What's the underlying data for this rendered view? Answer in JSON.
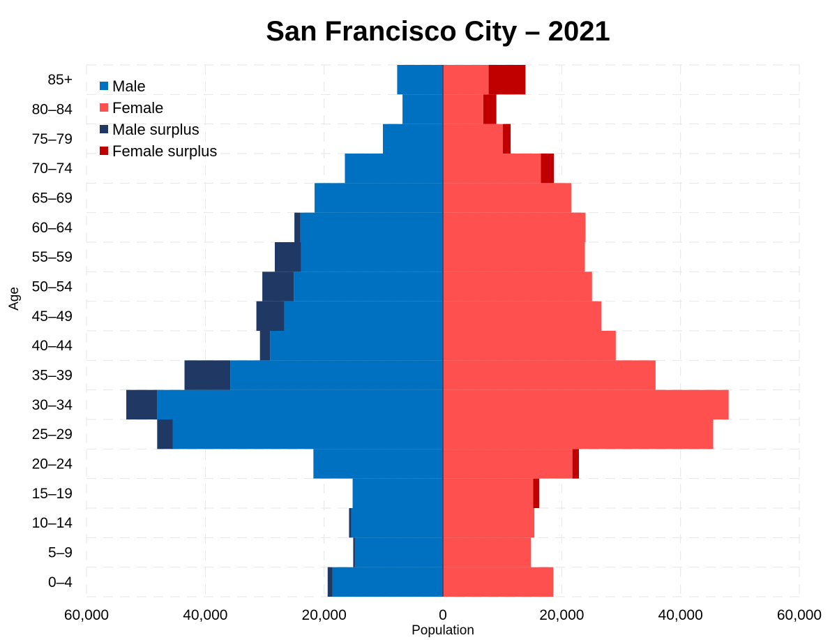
{
  "chart_data": {
    "type": "bar",
    "orientation": "horizontal",
    "layout": "population-pyramid",
    "title": "San Francisco City – 2021",
    "xlabel": "Population",
    "ylabel": "Age",
    "xlim": [
      -60000,
      60000
    ],
    "x_ticks": [
      {
        "value": -60000,
        "label": "60,000"
      },
      {
        "value": -40000,
        "label": "40,000"
      },
      {
        "value": -20000,
        "label": "20,000"
      },
      {
        "value": 0,
        "label": "0"
      },
      {
        "value": 20000,
        "label": "20,000"
      },
      {
        "value": 40000,
        "label": "40,000"
      },
      {
        "value": 60000,
        "label": "60,000"
      }
    ],
    "grid": true,
    "legend_position": "top-left",
    "categories": [
      "0–4",
      "5–9",
      "10–14",
      "15–19",
      "20–24",
      "25–29",
      "30–34",
      "35–39",
      "40–44",
      "45–49",
      "50–54",
      "55–59",
      "60–64",
      "65–69",
      "70–74",
      "75–79",
      "80–84",
      "85+"
    ],
    "series": [
      {
        "name": "Male",
        "side": "left",
        "values": [
          19400,
          15100,
          15800,
          15200,
          21800,
          48100,
          53300,
          43500,
          30800,
          31400,
          30400,
          28300,
          25000,
          21600,
          16500,
          10100,
          6800,
          7700
        ]
      },
      {
        "name": "Female",
        "side": "right",
        "values": [
          18600,
          14800,
          15400,
          16200,
          22900,
          45500,
          48100,
          35800,
          29100,
          26700,
          25100,
          23900,
          24000,
          21600,
          18700,
          11400,
          9000,
          13900
        ]
      }
    ],
    "surplus_series": [
      {
        "name": "Male surplus",
        "side": "left",
        "values": [
          800,
          300,
          400,
          0,
          0,
          2600,
          5200,
          7700,
          1700,
          4700,
          5300,
          4400,
          1000,
          0,
          0,
          0,
          0,
          0
        ]
      },
      {
        "name": "Female surplus",
        "side": "right",
        "values": [
          0,
          0,
          0,
          1000,
          1100,
          0,
          0,
          0,
          0,
          0,
          0,
          0,
          0,
          0,
          2200,
          1300,
          2200,
          6200
        ]
      }
    ],
    "colors": {
      "Male": "#0070c0",
      "Female": "#ff5050",
      "Male surplus": "#1f3864",
      "Female surplus": "#c00000",
      "center_line": "#2e4f7a"
    }
  }
}
